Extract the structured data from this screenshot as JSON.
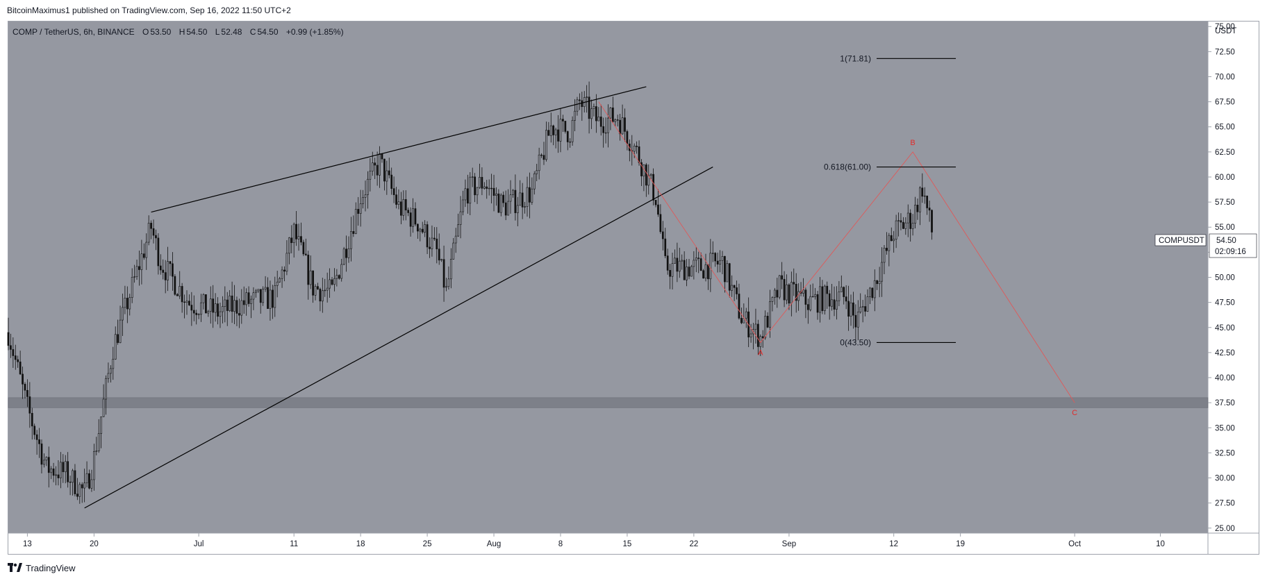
{
  "publisher": "BitcoinMaximus1 published on TradingView.com, Sep 16, 2022 11:50 UTC+2",
  "footer_brand": "TradingView",
  "colors": {
    "plot_bg": "#9598a1",
    "candle": "#111111",
    "trendline": "#000000",
    "wave_line": "#e05858",
    "wave_label": "#e22a2a",
    "support_zone": "#7d8089"
  },
  "legend": {
    "symbol": "COMP / TetherUS, 6h, BINANCE",
    "o_label": "O",
    "o_value": "53.50",
    "h_label": "H",
    "h_value": "54.50",
    "l_label": "L",
    "l_value": "52.48",
    "c_label": "C",
    "c_value": "54.50",
    "change": "+0.99 (+1.85%)"
  },
  "price_axis": {
    "currency": "USDT",
    "ticks": [
      "75.00",
      "72.50",
      "70.00",
      "67.50",
      "65.00",
      "62.50",
      "60.00",
      "57.50",
      "55.00",
      "52.50",
      "50.00",
      "47.50",
      "45.00",
      "42.50",
      "40.00",
      "37.50",
      "35.00",
      "32.50",
      "30.00",
      "27.50",
      "25.00"
    ],
    "tag_symbol": "COMPUSDT",
    "tag_price": "54.50",
    "tag_countdown": "02:09:16"
  },
  "time_axis": {
    "labels": [
      "13",
      "20",
      "Jul",
      "11",
      "18",
      "25",
      "Aug",
      "8",
      "15",
      "22",
      "Sep",
      "12",
      "19",
      "Oct",
      "10"
    ]
  },
  "chart_data": {
    "type": "candlestick",
    "title": "COMP / TetherUS, 6h, BINANCE",
    "ylim": [
      24.5,
      75.5
    ],
    "x_start": "2022-06-11",
    "x_end": "2022-10-15",
    "close_series": {
      "dates": [
        "2022-06-11",
        "2022-06-13",
        "2022-06-15",
        "2022-06-17",
        "2022-06-19",
        "2022-06-20",
        "2022-06-22",
        "2022-06-24",
        "2022-06-26",
        "2022-06-27",
        "2022-06-30",
        "2022-07-03",
        "2022-07-06",
        "2022-07-09",
        "2022-07-11",
        "2022-07-13",
        "2022-07-15",
        "2022-07-18",
        "2022-07-20",
        "2022-07-22",
        "2022-07-24",
        "2022-07-26",
        "2022-07-27",
        "2022-07-29",
        "2022-07-31",
        "2022-08-02",
        "2022-08-05",
        "2022-08-07",
        "2022-08-09",
        "2022-08-10",
        "2022-08-12",
        "2022-08-14",
        "2022-08-16",
        "2022-08-18",
        "2022-08-19",
        "2022-08-21",
        "2022-08-23",
        "2022-08-25",
        "2022-08-27",
        "2022-08-29",
        "2022-08-31",
        "2022-09-03",
        "2022-09-05",
        "2022-09-07",
        "2022-09-08",
        "2022-09-10",
        "2022-09-12",
        "2022-09-14",
        "2022-09-15",
        "2022-09-16"
      ],
      "values": [
        44.5,
        37.0,
        31.0,
        30.5,
        28.5,
        32.0,
        43.0,
        49.0,
        55.0,
        51.5,
        47.5,
        46.5,
        47.5,
        48.0,
        54.5,
        49.0,
        48.5,
        58.0,
        61.5,
        57.0,
        55.5,
        52.5,
        48.5,
        58.5,
        59.5,
        57.0,
        58.5,
        65.0,
        64.5,
        67.5,
        65.5,
        66.0,
        62.5,
        58.0,
        51.0,
        51.0,
        51.0,
        51.5,
        46.0,
        44.0,
        49.0,
        47.5,
        48.0,
        48.0,
        45.5,
        49.5,
        54.5,
        56.0,
        59.0,
        54.5
      ]
    },
    "trendlines": [
      {
        "name": "ascending wedge resistance",
        "from": {
          "date": "2022-06-26",
          "price": 56.5
        },
        "to": {
          "date": "2022-08-17",
          "price": 69.0
        }
      },
      {
        "name": "ascending wedge support",
        "from": {
          "date": "2022-06-19",
          "price": 27.0
        },
        "to": {
          "date": "2022-08-24",
          "price": 61.0
        }
      }
    ],
    "support_zone": {
      "low": 37.0,
      "high": 38.0
    },
    "fib_levels": [
      {
        "label": "1(71.81)",
        "price": 71.81
      },
      {
        "label": "0.618(61.00)",
        "price": 61.0
      },
      {
        "label": "0(43.50)",
        "price": 43.5
      }
    ],
    "wave_path": [
      {
        "label": "",
        "date": "2022-08-12",
        "price": 67.5
      },
      {
        "label": "A",
        "date": "2022-08-29",
        "price": 43.5
      },
      {
        "label": "B",
        "date": "2022-09-14",
        "price": 62.5
      },
      {
        "label": "C",
        "date": "2022-10-01",
        "price": 37.5
      }
    ]
  }
}
